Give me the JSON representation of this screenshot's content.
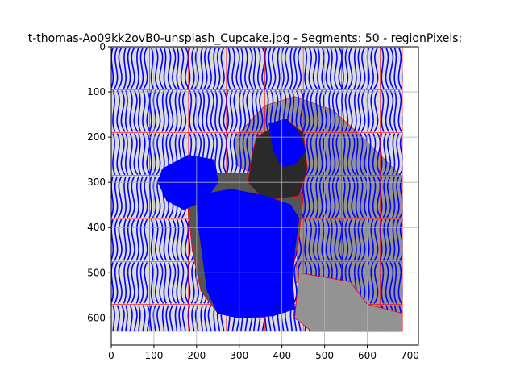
{
  "chart_data": {
    "type": "image",
    "title": "t-thomas-Ao09kk2ovB0-unsplash_Cupcake.jpg - Segments: 50 - regionPixels:",
    "xlabel": "",
    "ylabel": "",
    "xlim": [
      0,
      720
    ],
    "ylim": [
      660,
      0
    ],
    "y_inverted": true,
    "x_ticks": [
      0,
      100,
      200,
      300,
      400,
      500,
      600,
      700
    ],
    "y_ticks": [
      0,
      100,
      200,
      300,
      400,
      500,
      600
    ],
    "grid": true,
    "image_extent": {
      "x": [
        0,
        683
      ],
      "y": [
        0,
        630
      ]
    },
    "colors": {
      "light_region": "#dcdcdc",
      "mid_region": "#939393",
      "dark_region": "#555555",
      "darkest_region": "#2a2a2a",
      "streamline": "#0000ff",
      "boundary": "#ff0000",
      "grid": "#b0b0b0"
    },
    "regions": [
      {
        "name": "background-light",
        "color": "#dcdcdc",
        "polygon": [
          [
            0,
            0
          ],
          [
            683,
            0
          ],
          [
            683,
            630
          ],
          [
            0,
            630
          ]
        ]
      },
      {
        "name": "mid-right",
        "color": "#939393",
        "polygon": [
          [
            290,
            200
          ],
          [
            360,
            130
          ],
          [
            430,
            110
          ],
          [
            520,
            140
          ],
          [
            600,
            210
          ],
          [
            683,
            290
          ],
          [
            683,
            630
          ],
          [
            560,
            630
          ],
          [
            540,
            560
          ],
          [
            430,
            520
          ],
          [
            440,
            420
          ],
          [
            410,
            330
          ],
          [
            330,
            280
          ],
          [
            290,
            260
          ]
        ]
      },
      {
        "name": "cupcake-wrapper-dark",
        "color": "#555555",
        "polygon": [
          [
            160,
            280
          ],
          [
            420,
            280
          ],
          [
            450,
            330
          ],
          [
            440,
            420
          ],
          [
            420,
            520
          ],
          [
            430,
            580
          ],
          [
            350,
            600
          ],
          [
            250,
            590
          ],
          [
            210,
            540
          ],
          [
            190,
            450
          ],
          [
            180,
            360
          ]
        ]
      },
      {
        "name": "chocolate-top",
        "color": "#2a2a2a",
        "polygon": [
          [
            340,
            200
          ],
          [
            410,
            160
          ],
          [
            450,
            190
          ],
          [
            460,
            270
          ],
          [
            440,
            330
          ],
          [
            360,
            340
          ],
          [
            320,
            300
          ],
          [
            330,
            240
          ]
        ]
      },
      {
        "name": "mid-bottom-right",
        "color": "#939393",
        "polygon": [
          [
            440,
            500
          ],
          [
            560,
            520
          ],
          [
            600,
            570
          ],
          [
            683,
            590
          ],
          [
            683,
            630
          ],
          [
            470,
            630
          ],
          [
            430,
            600
          ]
        ]
      }
    ],
    "filled_blue": [
      {
        "name": "cupcake-body-streamlines",
        "polygon": [
          [
            200,
            330
          ],
          [
            280,
            315
          ],
          [
            360,
            330
          ],
          [
            420,
            350
          ],
          [
            440,
            380
          ],
          [
            430,
            450
          ],
          [
            425,
            520
          ],
          [
            430,
            580
          ],
          [
            380,
            595
          ],
          [
            300,
            600
          ],
          [
            250,
            590
          ],
          [
            225,
            540
          ],
          [
            215,
            470
          ],
          [
            205,
            400
          ]
        ]
      },
      {
        "name": "frosting-left-streamlines",
        "polygon": [
          [
            120,
            270
          ],
          [
            180,
            240
          ],
          [
            240,
            250
          ],
          [
            250,
            300
          ],
          [
            220,
            340
          ],
          [
            170,
            360
          ],
          [
            130,
            340
          ],
          [
            110,
            300
          ]
        ]
      },
      {
        "name": "frosting-right-streamlines",
        "polygon": [
          [
            370,
            170
          ],
          [
            410,
            160
          ],
          [
            440,
            190
          ],
          [
            455,
            230
          ],
          [
            430,
            260
          ],
          [
            400,
            265
          ],
          [
            380,
            230
          ],
          [
            375,
            200
          ]
        ]
      }
    ]
  }
}
